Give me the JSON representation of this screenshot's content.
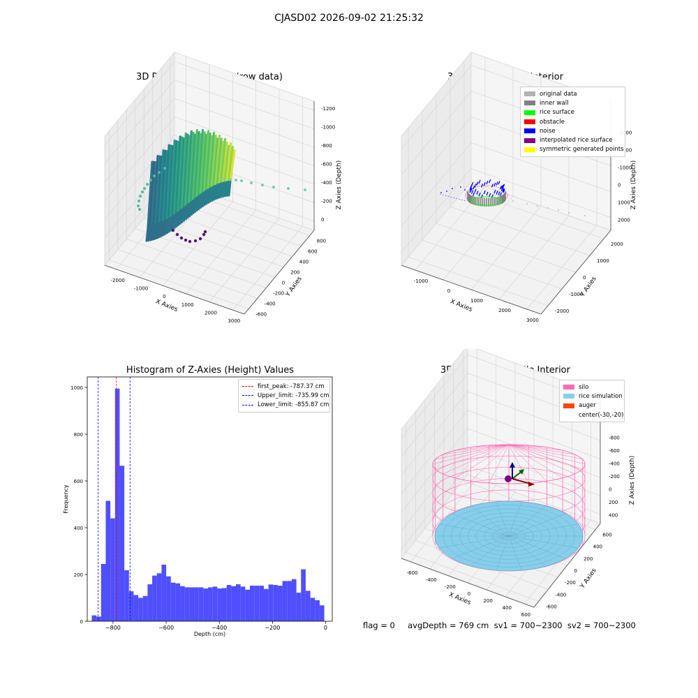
{
  "figure": {
    "suptitle": "CJASD02 2026-09-02 21:25:32",
    "footer": "flag = 0     avgDepth = 769 cm  sv1 = 700~2300  sv2 = 700~2300"
  },
  "chart_data": [
    {
      "type": "scatter",
      "subtype": "3d-scatter",
      "title": "3D Plot of Silo Interior(row data)",
      "xlabel": "X Axies",
      "ylabel": "Y Axies",
      "zlabel": "Z Axies (Depth)",
      "xticks": [
        "-2000",
        "-1000",
        "0",
        "1000",
        "2000",
        "3000"
      ],
      "yticks": [
        "-600",
        "-400",
        "-200",
        "0",
        "200",
        "400",
        "600",
        "800"
      ],
      "zticks": [
        "0",
        "-200",
        "-400",
        "-600",
        "-800",
        "-1000",
        "-1200"
      ],
      "xlim": [
        -2200,
        3500
      ],
      "ylim": [
        -700,
        900
      ],
      "zlim": [
        -1350,
        50
      ],
      "colormap": "viridis",
      "colormap_colors": [
        "#440154",
        "#3b528b",
        "#21918c",
        "#5ec962",
        "#fde725"
      ]
    },
    {
      "type": "scatter",
      "subtype": "3d-scatter",
      "title": "3D classify of Silo Interior",
      "xlabel": "X Axies",
      "ylabel": "Y Axies",
      "zlabel": "Z Axies (Depth)",
      "xticks": [
        "-1000",
        "0",
        "1000",
        "2000",
        "3000"
      ],
      "yticks": [
        "-2000",
        "-1000",
        "0",
        "1000",
        "2000"
      ],
      "zticks": [
        "2000",
        "1000",
        "0",
        "-1000",
        "-2000",
        "-3000"
      ],
      "legend": [
        {
          "label": "original data",
          "color": "#b3b3b3"
        },
        {
          "label": "inner wall",
          "color": "#808080"
        },
        {
          "label": "rice surface",
          "color": "#00ff00"
        },
        {
          "label": "obstacle",
          "color": "#ff0000"
        },
        {
          "label": "noise",
          "color": "#0000ff"
        },
        {
          "label": "interpolated rice surface",
          "color": "#800080"
        },
        {
          "label": "symmetric generated points",
          "color": "#ffff00"
        }
      ]
    },
    {
      "type": "bar",
      "subtype": "histogram",
      "title": "Histogram of Z-Axies (Height) Values",
      "xlabel": "Depth (cm)",
      "ylabel": "Frequency",
      "xlim": [
        -897,
        25
      ],
      "ylim": [
        0,
        1045
      ],
      "xticks": [
        -800,
        -600,
        -400,
        -200,
        0
      ],
      "yticks": [
        0,
        200,
        400,
        600,
        800,
        1000
      ],
      "bin_start": -880,
      "bin_width": 17.5,
      "values": [
        25,
        20,
        245,
        515,
        440,
        995,
        665,
        218,
        128,
        112,
        100,
        108,
        158,
        195,
        205,
        242,
        192,
        165,
        162,
        150,
        145,
        145,
        145,
        145,
        140,
        145,
        148,
        140,
        142,
        155,
        150,
        158,
        148,
        135,
        152,
        152,
        152,
        138,
        157,
        155,
        152,
        172,
        172,
        180,
        122,
        222,
        130,
        100,
        90,
        68
      ],
      "bar_color": "#4f4fff",
      "vlines": [
        {
          "label": "first_peak: -787.37 cm",
          "x": -787.37,
          "color": "#ff0000"
        },
        {
          "label": "Upper_limit: -735.99 cm",
          "x": -735.99,
          "color": "#0000ff"
        },
        {
          "label": "Lower_limit: -855.87 cm",
          "x": -855.87,
          "color": "#0000ff"
        }
      ]
    },
    {
      "type": "scatter",
      "subtype": "3d-surface",
      "title": "3D simulation of Silo Interior",
      "xlabel": "X Axies",
      "ylabel": "Y Axies",
      "zlabel": "Z Axies (Depth)",
      "xticks": [
        "-600",
        "-400",
        "-200",
        "0",
        "200",
        "400",
        "600"
      ],
      "yticks": [
        "-600",
        "-400",
        "-200",
        "0",
        "200",
        "400",
        "600"
      ],
      "zticks": [
        "400",
        "200",
        "0",
        "-200",
        "-400",
        "-600",
        "-800"
      ],
      "legend": [
        {
          "label": "silo",
          "color": "#ff69b4"
        },
        {
          "label": "rice simulation",
          "color": "#87ceeb"
        },
        {
          "label": "auger",
          "color": "#ff4500"
        },
        {
          "label": "center(-30,-20)",
          "color": ""
        }
      ]
    }
  ]
}
